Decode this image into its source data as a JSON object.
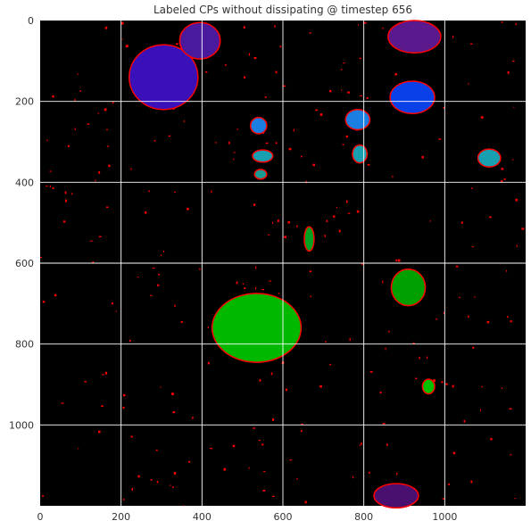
{
  "chart_data": {
    "type": "heatmap",
    "title": "Labeled CPs without dissipating @ timestep 656",
    "xlabel": "",
    "ylabel": "",
    "xlim": [
      0,
      1200
    ],
    "ylim": [
      1200,
      0
    ],
    "x_ticks": [
      0,
      200,
      400,
      600,
      800,
      1000
    ],
    "y_ticks": [
      0,
      200,
      400,
      600,
      800,
      1000
    ],
    "grid": true,
    "grid_color": "#ffffff",
    "background": "#000000",
    "boundary_color": "#ff0000",
    "colormap": "nipy_spectral",
    "regions": [
      {
        "label": "purple-blue-nw",
        "cx": 305,
        "cy": 140,
        "rx": 85,
        "ry": 80,
        "color": "#3a10b8"
      },
      {
        "label": "purple-n",
        "cx": 395,
        "cy": 50,
        "rx": 50,
        "ry": 45,
        "color": "#4a1a9e"
      },
      {
        "label": "purple-ne",
        "cx": 925,
        "cy": 40,
        "rx": 65,
        "ry": 40,
        "color": "#5a1a8e"
      },
      {
        "label": "blue-east",
        "cx": 920,
        "cy": 190,
        "rx": 55,
        "ry": 40,
        "color": "#0a40e8"
      },
      {
        "label": "blue-small-1",
        "cx": 785,
        "cy": 245,
        "rx": 30,
        "ry": 25,
        "color": "#1a7fe0"
      },
      {
        "label": "blue-small-2",
        "cx": 540,
        "cy": 260,
        "rx": 20,
        "ry": 20,
        "color": "#1a7fe0"
      },
      {
        "label": "cyan-1",
        "cx": 1110,
        "cy": 340,
        "rx": 28,
        "ry": 22,
        "color": "#18a0b0"
      },
      {
        "label": "cyan-2",
        "cx": 790,
        "cy": 330,
        "rx": 18,
        "ry": 22,
        "color": "#18a0b0"
      },
      {
        "label": "cyan-3",
        "cx": 550,
        "cy": 335,
        "rx": 25,
        "ry": 15,
        "color": "#18a0b0"
      },
      {
        "label": "teal-1",
        "cx": 545,
        "cy": 380,
        "rx": 15,
        "ry": 12,
        "color": "#1a9a90"
      },
      {
        "label": "green-big",
        "cx": 535,
        "cy": 760,
        "rx": 110,
        "ry": 85,
        "color": "#00b800"
      },
      {
        "label": "green-east",
        "cx": 910,
        "cy": 660,
        "rx": 42,
        "ry": 45,
        "color": "#00a000"
      },
      {
        "label": "green-chain",
        "cx": 665,
        "cy": 540,
        "rx": 12,
        "ry": 30,
        "color": "#00a020"
      },
      {
        "label": "green-small",
        "cx": 960,
        "cy": 905,
        "rx": 15,
        "ry": 18,
        "color": "#00c000"
      },
      {
        "label": "purple-south",
        "cx": 880,
        "cy": 1175,
        "rx": 55,
        "ry": 30,
        "color": "#4a1070"
      }
    ]
  }
}
